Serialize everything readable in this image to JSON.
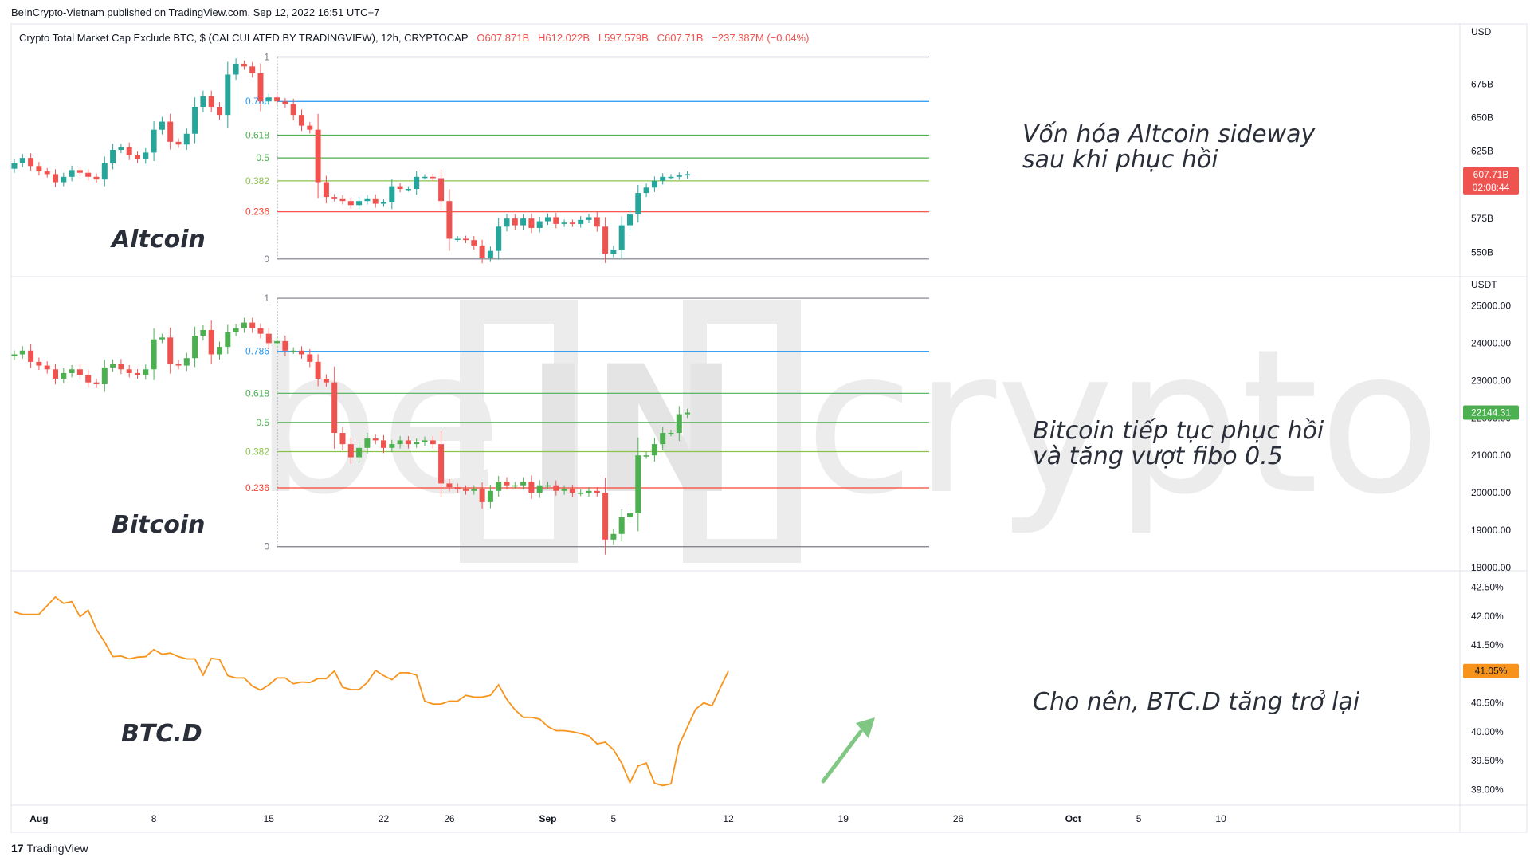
{
  "header": {
    "published": "BeInCrypto-Vietnam published on TradingView.com, Sep 12, 2022 16:51 UTC+7"
  },
  "legend": {
    "name": "Crypto Total Market Cap Exclude BTC, $ (CALCULATED BY TRADINGVIEW), 12h, CRYPTOCAP",
    "o": "O607.871B",
    "h": "H612.022B",
    "l": "L597.579B",
    "c": "C607.71B",
    "chg": "−237.387M (−0.04%)"
  },
  "footer": {
    "brand": "TradingView",
    "brand_mark": "17"
  },
  "watermark": {
    "left": "be",
    "mid": "IN",
    "right": "crypto"
  },
  "colors": {
    "up": "#26a69a",
    "down": "#ef5350",
    "up_btc": "#4caf50",
    "btcd": "#f7931a",
    "fib_1": "#787b86",
    "fib_786": "#2196f3",
    "fib_618": "#4caf50",
    "fib_5": "#4caf50",
    "fib_382": "#8bc34a",
    "fib_236": "#f44336",
    "fib_0": "#787b86",
    "arrow": "#81c784"
  },
  "chart_data": [
    {
      "type": "candlestick",
      "panel_label": "Altcoin",
      "annotation": [
        "Vốn hóa Altcoin sideway",
        "sau khi phục hồi"
      ],
      "unit": "USD",
      "yticks": [
        "675B",
        "650B",
        "625B",
        "600B",
        "575B",
        "550B"
      ],
      "ytick_values": [
        675,
        650,
        625,
        600,
        575,
        550
      ],
      "ylim": [
        536,
        703
      ],
      "last_price": "607.71B",
      "last_value": 607.71,
      "countdown": "02:08:44",
      "fib_levels": [
        {
          "label": "1",
          "value": 695
        },
        {
          "label": "0.786",
          "value": 662
        },
        {
          "label": "0.618",
          "value": 637
        },
        {
          "label": "0.5",
          "value": 620
        },
        {
          "label": "0.382",
          "value": 603
        },
        {
          "label": "0.236",
          "value": 580
        },
        {
          "label": "0",
          "value": 545
        }
      ],
      "closes": [
        616,
        620,
        614,
        610,
        608,
        602,
        606,
        611,
        609,
        606,
        604,
        616,
        626,
        628,
        622,
        619,
        624,
        641,
        647,
        632,
        630,
        638,
        658,
        666,
        658,
        652,
        682,
        690,
        688,
        683,
        662,
        665,
        662,
        660,
        652,
        644,
        641,
        602,
        591,
        590,
        588,
        585,
        588,
        590,
        586,
        587,
        599,
        597,
        597,
        606,
        606,
        605,
        588,
        560,
        560,
        559,
        555,
        546,
        551,
        569,
        575,
        570,
        575,
        568,
        573,
        576,
        571,
        572,
        571,
        574,
        576,
        569,
        549,
        552,
        570,
        578,
        594,
        598,
        603,
        606,
        606,
        607,
        608
      ],
      "opens": [
        612,
        616,
        620,
        614,
        610,
        608,
        602,
        606,
        611,
        609,
        606,
        604,
        616,
        626,
        628,
        622,
        619,
        624,
        641,
        647,
        632,
        630,
        638,
        658,
        666,
        658,
        652,
        682,
        690,
        688,
        683,
        662,
        665,
        662,
        660,
        652,
        644,
        641,
        602,
        591,
        590,
        588,
        585,
        588,
        590,
        586,
        587,
        599,
        597,
        597,
        606,
        606,
        605,
        588,
        560,
        560,
        559,
        555,
        546,
        551,
        569,
        575,
        570,
        575,
        568,
        573,
        576,
        571,
        572,
        571,
        574,
        576,
        569,
        549,
        552,
        570,
        578,
        594,
        598,
        603,
        606,
        606,
        607
      ]
    },
    {
      "type": "candlestick",
      "panel_label": "Bitcoin",
      "annotation": [
        "Bitcoin tiếp tục phục hồi",
        "và tăng vượt fibo 0.5"
      ],
      "unit": "USDT",
      "yticks": [
        "25000.00",
        "24000.00",
        "23000.00",
        "22000.00",
        "21000.00",
        "20000.00",
        "19000.00",
        "18000.00"
      ],
      "ytick_values": [
        25000,
        24000,
        23000,
        22000,
        21000,
        20000,
        19000,
        18000
      ],
      "ylim": [
        18000,
        25500
      ],
      "last_price": "22144.31",
      "last_value": 22144.31,
      "fib_levels": [
        {
          "label": "1",
          "value": 25200
        },
        {
          "label": "0.786",
          "value": 23780
        },
        {
          "label": "0.618",
          "value": 22660
        },
        {
          "label": "0.5",
          "value": 21880
        },
        {
          "label": "0.382",
          "value": 21100
        },
        {
          "label": "0.236",
          "value": 20130
        },
        {
          "label": "0",
          "value": 18560
        }
      ],
      "closes": [
        23700,
        23800,
        23500,
        23400,
        23300,
        23050,
        23200,
        23300,
        23150,
        22950,
        22900,
        23350,
        23450,
        23300,
        23200,
        23150,
        23300,
        24100,
        24150,
        23450,
        23400,
        23600,
        24200,
        24350,
        23700,
        23900,
        24300,
        24400,
        24550,
        24400,
        24250,
        24000,
        24050,
        23800,
        23800,
        23700,
        23500,
        23050,
        22950,
        21600,
        21300,
        20950,
        21200,
        21450,
        21400,
        21200,
        21300,
        21400,
        21300,
        21350,
        21400,
        21300,
        20250,
        20150,
        20100,
        20050,
        20100,
        19750,
        20050,
        20300,
        20200,
        20200,
        20300,
        20000,
        20200,
        20200,
        20050,
        20100,
        20000,
        20000,
        20050,
        20000,
        18750,
        18900,
        19350,
        19450,
        21000,
        21000,
        21300,
        21600,
        21600,
        22100,
        22144
      ],
      "opens": [
        23650,
        23700,
        23800,
        23500,
        23400,
        23300,
        23050,
        23200,
        23300,
        23150,
        22950,
        22900,
        23350,
        23450,
        23300,
        23200,
        23150,
        23300,
        24100,
        24150,
        23450,
        23400,
        23600,
        24200,
        24350,
        23700,
        23900,
        24300,
        24400,
        24550,
        24400,
        24250,
        24000,
        24050,
        23800,
        23800,
        23700,
        23500,
        23050,
        22950,
        21600,
        21300,
        20950,
        21200,
        21450,
        21400,
        21200,
        21300,
        21400,
        21300,
        21350,
        21400,
        21300,
        20250,
        20150,
        20100,
        20050,
        20100,
        19750,
        20050,
        20300,
        20200,
        20200,
        20300,
        20000,
        20200,
        20200,
        20050,
        20100,
        20000,
        20000,
        20050,
        20000,
        18750,
        18900,
        19350,
        19450,
        21000,
        21000,
        21300,
        21600,
        21600,
        22100
      ]
    },
    {
      "type": "line",
      "panel_label": "BTC.D",
      "annotation": [
        "Cho nên, BTC.D tăng trở lại"
      ],
      "yticks": [
        "42.50%",
        "42.00%",
        "41.50%",
        "41.00%",
        "40.50%",
        "40.00%",
        "39.50%",
        "39.00%"
      ],
      "ytick_values": [
        42.5,
        42.0,
        41.5,
        41.0,
        40.5,
        40.0,
        39.5,
        39.0
      ],
      "ylim": [
        38.8,
        42.7
      ],
      "last_price": "41.05%",
      "last_value": 41.05,
      "values": [
        42.07,
        42.03,
        42.03,
        42.03,
        42.18,
        42.33,
        42.22,
        42.25,
        41.99,
        42.1,
        41.77,
        41.55,
        41.3,
        41.31,
        41.26,
        41.29,
        41.3,
        41.42,
        41.34,
        41.36,
        41.3,
        41.26,
        41.26,
        40.98,
        41.27,
        41.25,
        40.97,
        40.93,
        40.93,
        40.79,
        40.72,
        40.81,
        40.93,
        40.93,
        40.83,
        40.86,
        40.85,
        40.92,
        40.92,
        41.05,
        40.77,
        40.73,
        40.73,
        40.85,
        41.06,
        40.97,
        40.9,
        41.02,
        41.02,
        40.98,
        40.53,
        40.48,
        40.48,
        40.53,
        40.53,
        40.63,
        40.6,
        40.6,
        40.63,
        40.81,
        40.56,
        40.38,
        40.25,
        40.25,
        40.22,
        40.09,
        40.02,
        40.02,
        40.0,
        39.97,
        39.93,
        39.79,
        39.82,
        39.69,
        39.46,
        39.12,
        39.41,
        39.46,
        39.11,
        39.07,
        39.1,
        39.78,
        40.08,
        40.39,
        40.5,
        40.45,
        40.76,
        41.05
      ]
    }
  ],
  "time_axis": {
    "labels": [
      "Aug",
      "8",
      "15",
      "22",
      "26",
      "Sep",
      "5",
      "12",
      "19",
      "26",
      "Oct",
      "5",
      "10"
    ],
    "bar_index": [
      3,
      17,
      31,
      45,
      53,
      65,
      73,
      87,
      101,
      115,
      129,
      137,
      147
    ],
    "bars_total": 150
  }
}
